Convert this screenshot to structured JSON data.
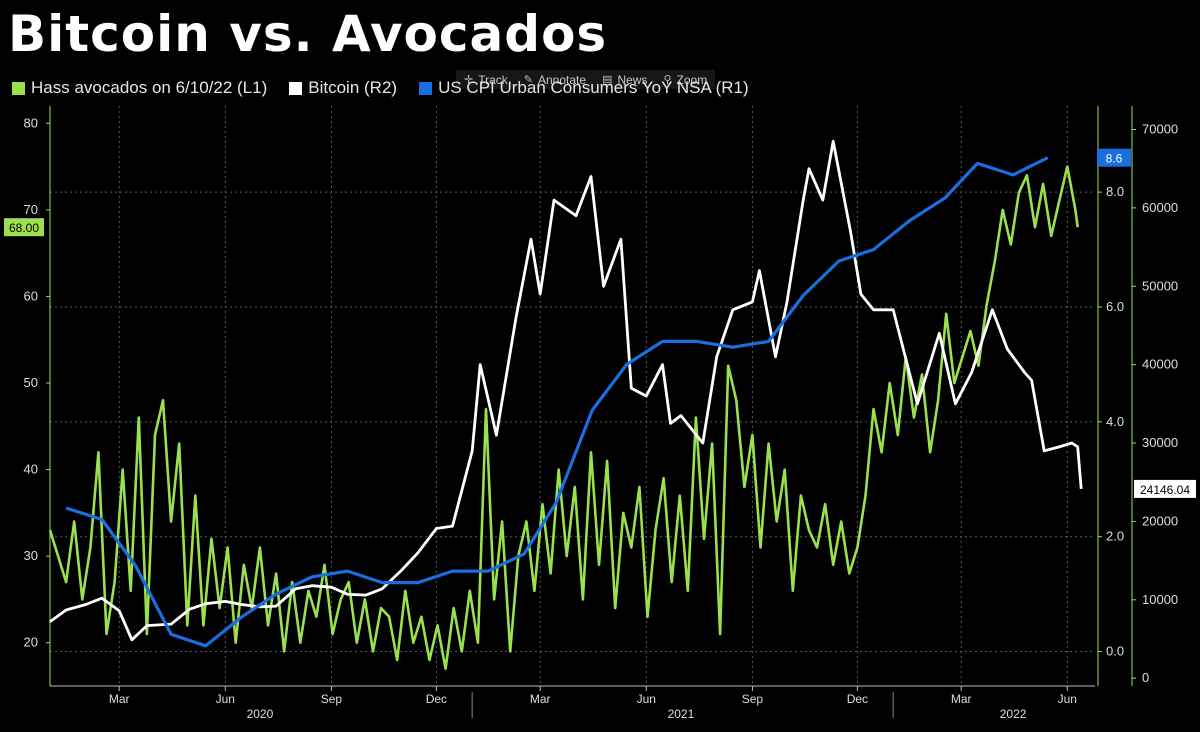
{
  "title": "Bitcoin vs. Avocados",
  "toolbar": {
    "track": "Track",
    "annotate": "Annotate",
    "news": "News",
    "zoom": "Zoom"
  },
  "legend": [
    {
      "label": "Hass avocados on 6/10/22 (L1)",
      "color": "#9be04e"
    },
    {
      "label": "Bitcoin (R2)",
      "color": "#ffffff"
    },
    {
      "label": "US CPI Urban Consumers YoY NSA  (R1)",
      "color": "#1a6fe0"
    }
  ],
  "colors": {
    "avocado": "#9be04e",
    "bitcoin": "#ffffff",
    "cpi": "#1a6fe0",
    "grid": "#5a5a5a",
    "axis_l1": "#9be04e",
    "axis_r1": "#9be04e",
    "axis_r2": "#9be04e"
  },
  "chart_data": {
    "type": "line",
    "x_axis": {
      "start": "2020-01-01",
      "end": "2022-06-25",
      "month_ticks": [
        {
          "date": "2020-03-01",
          "label": "Mar"
        },
        {
          "date": "2020-06-01",
          "label": "Jun"
        },
        {
          "date": "2020-09-01",
          "label": "Sep"
        },
        {
          "date": "2020-12-01",
          "label": "Dec"
        },
        {
          "date": "2021-03-01",
          "label": "Mar"
        },
        {
          "date": "2021-06-01",
          "label": "Jun"
        },
        {
          "date": "2021-09-01",
          "label": "Sep"
        },
        {
          "date": "2021-12-01",
          "label": "Dec"
        },
        {
          "date": "2022-03-01",
          "label": "Mar"
        },
        {
          "date": "2022-06-01",
          "label": "Jun"
        }
      ],
      "year_labels": [
        {
          "date": "2020-07-01",
          "label": "2020"
        },
        {
          "date": "2021-07-01",
          "label": "2021"
        },
        {
          "date": "2022-04-15",
          "label": "2022"
        }
      ],
      "year_separators": [
        "2021-01-01",
        "2022-01-01"
      ]
    },
    "axes": {
      "L1": {
        "min": 15,
        "max": 82,
        "ticks": [
          20,
          30,
          40,
          50,
          60,
          70,
          80
        ],
        "last_value_label": "68.00",
        "last_value": 68
      },
      "R1": {
        "min": -0.6,
        "max": 9.5,
        "ticks": [
          "0.0",
          "2.0",
          "4.0",
          "6.0",
          "8.0"
        ],
        "last_value_label": "8.6",
        "last_value": 8.6
      },
      "R2": {
        "min": -1000,
        "max": 73000,
        "ticks": [
          0,
          10000,
          20000,
          30000,
          40000,
          50000,
          60000,
          70000
        ],
        "last_value_label": "24146.04",
        "last_value": 24146.04
      }
    },
    "grid": true,
    "series": [
      {
        "name": "Hass avocados on 6/10/22",
        "axis": "L1",
        "points": [
          [
            "2020-01-01",
            33
          ],
          [
            "2020-01-08",
            30
          ],
          [
            "2020-01-15",
            27
          ],
          [
            "2020-01-22",
            34
          ],
          [
            "2020-01-29",
            25
          ],
          [
            "2020-02-05",
            31
          ],
          [
            "2020-02-12",
            42
          ],
          [
            "2020-02-19",
            21
          ],
          [
            "2020-02-26",
            27
          ],
          [
            "2020-03-04",
            40
          ],
          [
            "2020-03-11",
            26
          ],
          [
            "2020-03-18",
            46
          ],
          [
            "2020-03-25",
            21
          ],
          [
            "2020-04-01",
            44
          ],
          [
            "2020-04-08",
            48
          ],
          [
            "2020-04-15",
            34
          ],
          [
            "2020-04-22",
            43
          ],
          [
            "2020-04-29",
            22
          ],
          [
            "2020-05-06",
            37
          ],
          [
            "2020-05-13",
            22
          ],
          [
            "2020-05-20",
            32
          ],
          [
            "2020-05-27",
            24
          ],
          [
            "2020-06-03",
            31
          ],
          [
            "2020-06-10",
            20
          ],
          [
            "2020-06-17",
            29
          ],
          [
            "2020-06-24",
            24
          ],
          [
            "2020-07-01",
            31
          ],
          [
            "2020-07-08",
            22
          ],
          [
            "2020-07-15",
            28
          ],
          [
            "2020-07-22",
            19
          ],
          [
            "2020-07-29",
            27
          ],
          [
            "2020-08-05",
            20
          ],
          [
            "2020-08-12",
            26
          ],
          [
            "2020-08-19",
            23
          ],
          [
            "2020-08-26",
            29
          ],
          [
            "2020-09-02",
            21
          ],
          [
            "2020-09-09",
            25
          ],
          [
            "2020-09-16",
            27
          ],
          [
            "2020-09-23",
            20
          ],
          [
            "2020-09-30",
            25
          ],
          [
            "2020-10-07",
            19
          ],
          [
            "2020-10-14",
            24
          ],
          [
            "2020-10-21",
            23
          ],
          [
            "2020-10-28",
            18
          ],
          [
            "2020-11-04",
            26
          ],
          [
            "2020-11-11",
            20
          ],
          [
            "2020-11-18",
            23
          ],
          [
            "2020-11-25",
            18
          ],
          [
            "2020-12-02",
            22
          ],
          [
            "2020-12-09",
            17
          ],
          [
            "2020-12-16",
            24
          ],
          [
            "2020-12-23",
            19
          ],
          [
            "2020-12-30",
            26
          ],
          [
            "2021-01-06",
            20
          ],
          [
            "2021-01-13",
            47
          ],
          [
            "2021-01-20",
            25
          ],
          [
            "2021-01-27",
            34
          ],
          [
            "2021-02-03",
            19
          ],
          [
            "2021-02-10",
            30
          ],
          [
            "2021-02-17",
            34
          ],
          [
            "2021-02-24",
            26
          ],
          [
            "2021-03-03",
            36
          ],
          [
            "2021-03-10",
            28
          ],
          [
            "2021-03-17",
            40
          ],
          [
            "2021-03-24",
            30
          ],
          [
            "2021-03-31",
            38
          ],
          [
            "2021-04-07",
            25
          ],
          [
            "2021-04-14",
            42
          ],
          [
            "2021-04-21",
            29
          ],
          [
            "2021-04-28",
            41
          ],
          [
            "2021-05-05",
            24
          ],
          [
            "2021-05-12",
            35
          ],
          [
            "2021-05-19",
            31
          ],
          [
            "2021-05-26",
            38
          ],
          [
            "2021-06-02",
            23
          ],
          [
            "2021-06-09",
            33
          ],
          [
            "2021-06-16",
            39
          ],
          [
            "2021-06-23",
            27
          ],
          [
            "2021-06-30",
            37
          ],
          [
            "2021-07-07",
            26
          ],
          [
            "2021-07-14",
            46
          ],
          [
            "2021-07-21",
            32
          ],
          [
            "2021-07-28",
            43
          ],
          [
            "2021-08-04",
            21
          ],
          [
            "2021-08-11",
            52
          ],
          [
            "2021-08-18",
            48
          ],
          [
            "2021-08-25",
            38
          ],
          [
            "2021-09-01",
            44
          ],
          [
            "2021-09-08",
            31
          ],
          [
            "2021-09-15",
            43
          ],
          [
            "2021-09-22",
            34
          ],
          [
            "2021-09-29",
            40
          ],
          [
            "2021-10-06",
            26
          ],
          [
            "2021-10-13",
            37
          ],
          [
            "2021-10-20",
            33
          ],
          [
            "2021-10-27",
            31
          ],
          [
            "2021-11-03",
            36
          ],
          [
            "2021-11-10",
            29
          ],
          [
            "2021-11-17",
            34
          ],
          [
            "2021-11-24",
            28
          ],
          [
            "2021-12-01",
            31
          ],
          [
            "2021-12-08",
            37
          ],
          [
            "2021-12-15",
            47
          ],
          [
            "2021-12-22",
            42
          ],
          [
            "2021-12-29",
            50
          ],
          [
            "2022-01-05",
            44
          ],
          [
            "2022-01-12",
            53
          ],
          [
            "2022-01-19",
            46
          ],
          [
            "2022-01-26",
            51
          ],
          [
            "2022-02-02",
            42
          ],
          [
            "2022-02-09",
            48
          ],
          [
            "2022-02-16",
            58
          ],
          [
            "2022-02-23",
            50
          ],
          [
            "2022-03-02",
            53
          ],
          [
            "2022-03-09",
            56
          ],
          [
            "2022-03-16",
            52
          ],
          [
            "2022-03-23",
            59
          ],
          [
            "2022-03-30",
            64
          ],
          [
            "2022-04-06",
            70
          ],
          [
            "2022-04-13",
            66
          ],
          [
            "2022-04-20",
            72
          ],
          [
            "2022-04-27",
            74
          ],
          [
            "2022-05-04",
            68
          ],
          [
            "2022-05-11",
            73
          ],
          [
            "2022-05-18",
            67
          ],
          [
            "2022-05-25",
            71
          ],
          [
            "2022-06-01",
            75
          ],
          [
            "2022-06-08",
            70
          ],
          [
            "2022-06-10",
            68
          ]
        ]
      },
      {
        "name": "Bitcoin",
        "axis": "R2",
        "points": [
          [
            "2020-01-01",
            7200
          ],
          [
            "2020-01-15",
            8700
          ],
          [
            "2020-02-01",
            9400
          ],
          [
            "2020-02-15",
            10200
          ],
          [
            "2020-03-01",
            8600
          ],
          [
            "2020-03-12",
            4900
          ],
          [
            "2020-03-25",
            6700
          ],
          [
            "2020-04-15",
            6900
          ],
          [
            "2020-05-01",
            8800
          ],
          [
            "2020-05-15",
            9500
          ],
          [
            "2020-06-01",
            9800
          ],
          [
            "2020-06-15",
            9400
          ],
          [
            "2020-07-01",
            9100
          ],
          [
            "2020-07-15",
            9200
          ],
          [
            "2020-08-01",
            11400
          ],
          [
            "2020-08-15",
            11800
          ],
          [
            "2020-09-01",
            11600
          ],
          [
            "2020-09-15",
            10700
          ],
          [
            "2020-10-01",
            10600
          ],
          [
            "2020-10-15",
            11400
          ],
          [
            "2020-11-01",
            13800
          ],
          [
            "2020-11-15",
            16000
          ],
          [
            "2020-12-01",
            19100
          ],
          [
            "2020-12-15",
            19400
          ],
          [
            "2021-01-01",
            29000
          ],
          [
            "2021-01-08",
            40000
          ],
          [
            "2021-01-22",
            31000
          ],
          [
            "2021-02-08",
            46000
          ],
          [
            "2021-02-21",
            56000
          ],
          [
            "2021-03-01",
            49000
          ],
          [
            "2021-03-13",
            61000
          ],
          [
            "2021-04-01",
            59000
          ],
          [
            "2021-04-14",
            64000
          ],
          [
            "2021-04-25",
            50000
          ],
          [
            "2021-05-10",
            56000
          ],
          [
            "2021-05-19",
            37000
          ],
          [
            "2021-06-01",
            36000
          ],
          [
            "2021-06-15",
            40000
          ],
          [
            "2021-06-22",
            32500
          ],
          [
            "2021-07-01",
            33500
          ],
          [
            "2021-07-20",
            30000
          ],
          [
            "2021-08-01",
            41000
          ],
          [
            "2021-08-15",
            47000
          ],
          [
            "2021-09-01",
            48000
          ],
          [
            "2021-09-07",
            52000
          ],
          [
            "2021-09-21",
            41000
          ],
          [
            "2021-10-01",
            48000
          ],
          [
            "2021-10-15",
            61000
          ],
          [
            "2021-10-20",
            65000
          ],
          [
            "2021-11-01",
            61000
          ],
          [
            "2021-11-10",
            68500
          ],
          [
            "2021-11-25",
            57000
          ],
          [
            "2021-12-04",
            49000
          ],
          [
            "2021-12-15",
            47000
          ],
          [
            "2022-01-01",
            47000
          ],
          [
            "2022-01-22",
            35000
          ],
          [
            "2022-02-10",
            44000
          ],
          [
            "2022-02-24",
            35000
          ],
          [
            "2022-03-10",
            39000
          ],
          [
            "2022-03-28",
            47000
          ],
          [
            "2022-04-10",
            42000
          ],
          [
            "2022-04-25",
            39000
          ],
          [
            "2022-05-01",
            38000
          ],
          [
            "2022-05-12",
            29000
          ],
          [
            "2022-05-25",
            29500
          ],
          [
            "2022-06-05",
            30000
          ],
          [
            "2022-06-10",
            29500
          ],
          [
            "2022-06-13",
            24146.04
          ]
        ]
      },
      {
        "name": "US CPI Urban Consumers YoY NSA",
        "axis": "R1",
        "points": [
          [
            "2020-01-15",
            2.5
          ],
          [
            "2020-02-15",
            2.3
          ],
          [
            "2020-03-15",
            1.5
          ],
          [
            "2020-04-15",
            0.3
          ],
          [
            "2020-05-15",
            0.1
          ],
          [
            "2020-06-15",
            0.6
          ],
          [
            "2020-07-15",
            1.0
          ],
          [
            "2020-08-15",
            1.3
          ],
          [
            "2020-09-15",
            1.4
          ],
          [
            "2020-10-15",
            1.2
          ],
          [
            "2020-11-15",
            1.2
          ],
          [
            "2020-12-15",
            1.4
          ],
          [
            "2021-01-15",
            1.4
          ],
          [
            "2021-02-15",
            1.7
          ],
          [
            "2021-03-15",
            2.6
          ],
          [
            "2021-04-15",
            4.2
          ],
          [
            "2021-05-15",
            5.0
          ],
          [
            "2021-06-15",
            5.4
          ],
          [
            "2021-07-15",
            5.4
          ],
          [
            "2021-08-15",
            5.3
          ],
          [
            "2021-09-15",
            5.4
          ],
          [
            "2021-10-15",
            6.2
          ],
          [
            "2021-11-15",
            6.8
          ],
          [
            "2021-12-15",
            7.0
          ],
          [
            "2022-01-15",
            7.5
          ],
          [
            "2022-02-15",
            7.9
          ],
          [
            "2022-03-15",
            8.5
          ],
          [
            "2022-04-15",
            8.3
          ],
          [
            "2022-05-15",
            8.6
          ]
        ]
      }
    ]
  }
}
